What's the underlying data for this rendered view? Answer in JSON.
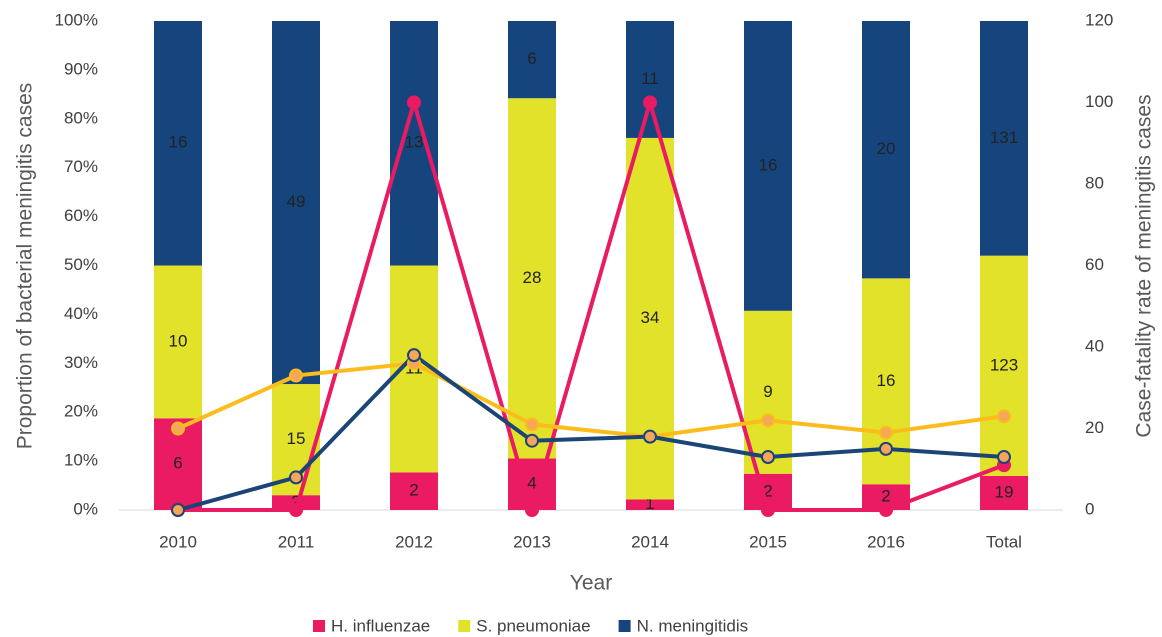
{
  "chart_data": {
    "type": "bar",
    "stack": "percent",
    "xlabel": "Year",
    "ylabel": "Proportion of bacterial meningitis cases",
    "y2label": "Case-fatality rate of meningitis cases",
    "categories": [
      "2010",
      "2011",
      "2012",
      "2013",
      "2014",
      "2015",
      "2016",
      "Total"
    ],
    "series": [
      {
        "name": "H. influenzae",
        "color": "#ea1a63",
        "values": [
          6,
          2,
          2,
          4,
          1,
          2,
          2,
          19
        ],
        "line_axis": "y2",
        "line_color": "#ea1a63",
        "marker_color": "#ea1a63",
        "line_values": [
          0,
          0,
          100,
          0,
          100,
          0,
          0,
          11
        ]
      },
      {
        "name": "S. pneumoniae",
        "color": "#e3e22b",
        "values": [
          10,
          15,
          11,
          28,
          34,
          9,
          16,
          123
        ],
        "line_axis": "y2",
        "line_color": "#fbbc1c",
        "marker_color": "#f6a65a",
        "line_values": [
          20,
          33,
          36,
          21,
          18,
          22,
          19,
          23
        ]
      },
      {
        "name": "N. meningitidis",
        "color": "#16457e",
        "values": [
          16,
          49,
          13,
          6,
          11,
          16,
          20,
          131
        ],
        "line_axis": "y2",
        "line_color": "#1b4477",
        "marker_color": "#f6a65a",
        "line_values": [
          0,
          8,
          38,
          17,
          18,
          13,
          15,
          13
        ]
      }
    ],
    "ylim": [
      0,
      100
    ],
    "yticks": [
      {
        "value": 0,
        "label": "0%"
      },
      {
        "value": 10,
        "label": "10%"
      },
      {
        "value": 20,
        "label": "20%"
      },
      {
        "value": 30,
        "label": "30%"
      },
      {
        "value": 40,
        "label": "40%"
      },
      {
        "value": 50,
        "label": "50%"
      },
      {
        "value": 60,
        "label": "60%"
      },
      {
        "value": 70,
        "label": "70%"
      },
      {
        "value": 80,
        "label": "80%"
      },
      {
        "value": 90,
        "label": "90%"
      },
      {
        "value": 100,
        "label": "100%"
      }
    ],
    "y2lim": [
      0,
      120
    ],
    "y2ticks": [
      0,
      20,
      40,
      60,
      80,
      100,
      120
    ],
    "legend": "bottom",
    "grid": false
  }
}
